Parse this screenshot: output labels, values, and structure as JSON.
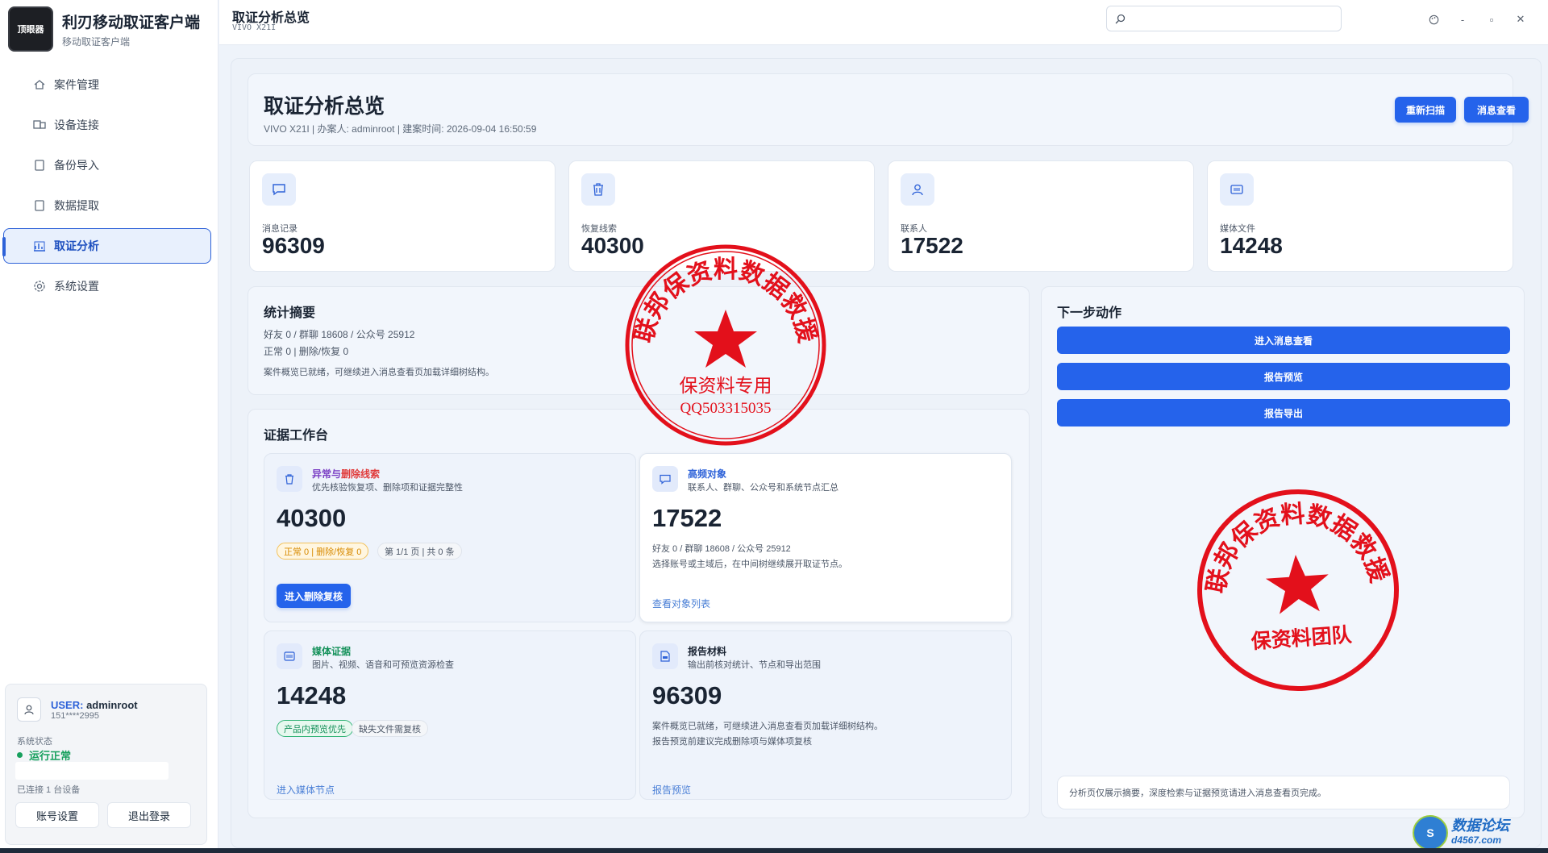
{
  "app": {
    "title": "利刃移动取证客户端",
    "subtitle": "移动取证客户端",
    "logo_text": "顶眼器"
  },
  "nav": {
    "items": [
      {
        "label": "案件管理",
        "icon": "home-icon"
      },
      {
        "label": "设备连接",
        "icon": "device-icon"
      },
      {
        "label": "备份导入",
        "icon": "file-icon"
      },
      {
        "label": "数据提取",
        "icon": "file-icon"
      },
      {
        "label": "取证分析",
        "icon": "chart-icon",
        "active": true
      },
      {
        "label": "系统设置",
        "icon": "gear-icon"
      }
    ]
  },
  "user": {
    "label": "USER:",
    "name": "adminroot",
    "phone": "151****2995",
    "system_label": "系统状态",
    "status": "运行正常",
    "connected": "已连接 1 台设备",
    "account_btn": "账号设置",
    "logout_btn": "退出登录"
  },
  "titlebar": {
    "title": "取证分析总览",
    "device": "VIVO X21I",
    "search_placeholder": ""
  },
  "hero": {
    "title": "取证分析总览",
    "meta": "VIVO X21I  |  办案人: adminroot  |  建案时间: 2026-09-04 16:50:59",
    "rescan_btn": "重新扫描",
    "view_msg_btn": "消息查看"
  },
  "stats": [
    {
      "label": "消息记录",
      "value": "96309",
      "icon": "message-icon"
    },
    {
      "label": "恢复线索",
      "value": "40300",
      "icon": "trash-icon"
    },
    {
      "label": "联系人",
      "value": "17522",
      "icon": "user-icon"
    },
    {
      "label": "媒体文件",
      "value": "14248",
      "icon": "media-icon"
    }
  ],
  "summary": {
    "title": "统计摘要",
    "line1": "好友 0 / 群聊 18608 / 公众号 25912",
    "line2": "正常 0 | 删除/恢复 0",
    "line3": "案件概览已就绪，可继续进入消息查看页加载详细树结构。"
  },
  "workbench": {
    "title": "证据工作台",
    "cards": [
      {
        "title_a": "异常与",
        "title_b": "删除线索",
        "desc": "优先核验恢复项、删除项和证据完整性",
        "value": "40300",
        "pill1": "正常 0 | 删除/恢复 0",
        "pill2": "第 1/1 页 | 共 0 条",
        "button": "进入删除复核"
      },
      {
        "title": "高频对象",
        "desc": "联系人、群聊、公众号和系统节点汇总",
        "value": "17522",
        "line1": "好友 0 / 群聊 18608 / 公众号 25912",
        "line2": "选择账号或主域后，在中间树继续展开取证节点。",
        "link": "查看对象列表"
      },
      {
        "title": "媒体证据",
        "desc": "图片、视频、语音和可预览资源检查",
        "value": "14248",
        "pill1": "产品内预览优先",
        "pill2": "缺失文件需复核",
        "link": "进入媒体节点"
      },
      {
        "title": "报告材料",
        "desc": "输出前核对统计、节点和导出范围",
        "value": "96309",
        "line1": "案件概览已就绪，可继续进入消息查看页加载详细树结构。",
        "line2": "报告预览前建议完成删除项与媒体项复核",
        "link": "报告预览"
      }
    ]
  },
  "next_actions": {
    "title": "下一步动作",
    "buttons": [
      "进入消息查看",
      "报告预览",
      "报告导出"
    ],
    "note": "分析页仅展示摘要，深度检索与证据预览请进入消息查看页完成。"
  },
  "stamps": [
    {
      "arc_text": "联邦保资料数据救援",
      "line1": "保资料专用",
      "line2": "QQ503315035",
      "color": "#e3101b"
    },
    {
      "arc_text": "联邦保资料数据救援",
      "line1": "保资料团队",
      "color": "#e3101b"
    }
  ],
  "watermark": {
    "top": "数据论坛",
    "bottom": "d4567.com",
    "badge": "S"
  },
  "colors": {
    "accent": "#2563eb",
    "danger": "#e03b3b",
    "success": "#17a05d",
    "warning": "#d88a00"
  }
}
